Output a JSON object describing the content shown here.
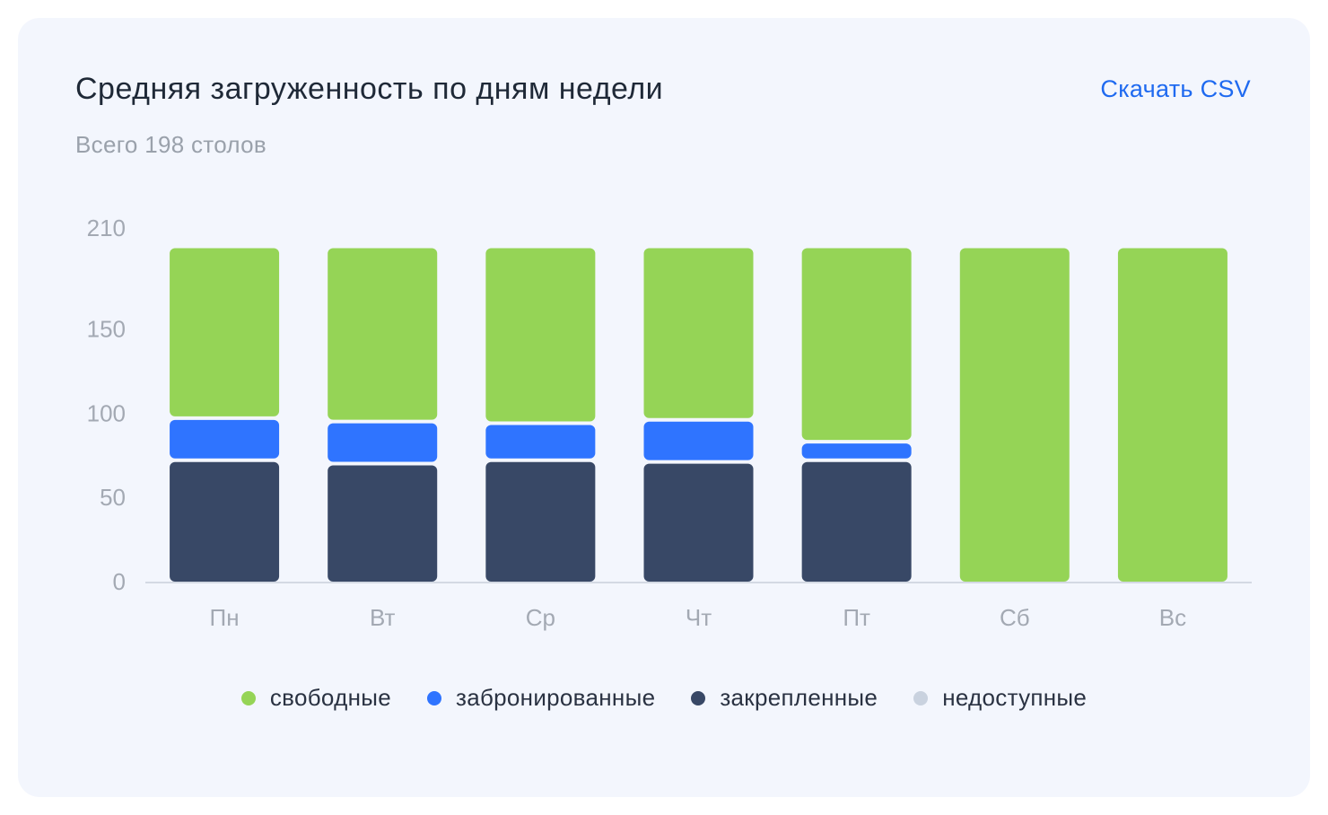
{
  "header": {
    "title": "Средняя загруженность по дням недели",
    "subtitle": "Всего 198 столов",
    "download_label": "Скачать CSV"
  },
  "colors": {
    "free": "#95d456",
    "booked": "#2f74ff",
    "fixed": "#384866",
    "unavailable": "#c9d2df",
    "axis": "#d3d9e3",
    "tick_text": "#a3a9b3"
  },
  "chart_data": {
    "type": "bar",
    "stacked": true,
    "title": "Средняя загруженность по дням недели",
    "subtitle": "Всего 198 столов",
    "categories": [
      "Пн",
      "Вт",
      "Ср",
      "Чт",
      "Пт",
      "Сб",
      "Вс"
    ],
    "yticks": [
      0,
      50,
      100,
      150,
      210
    ],
    "ylim": [
      0,
      210
    ],
    "grid": false,
    "legend_position": "bottom",
    "series": [
      {
        "name": "закрепленные",
        "color": "#384866",
        "values": [
          71,
          69,
          71,
          70,
          71,
          0,
          0
        ]
      },
      {
        "name": "забронированные",
        "color": "#2f74ff",
        "values": [
          25,
          25,
          22,
          25,
          11,
          0,
          0
        ]
      },
      {
        "name": "свободные",
        "color": "#95d456",
        "values": [
          102,
          104,
          105,
          103,
          116,
          198,
          198
        ]
      },
      {
        "name": "недоступные",
        "color": "#c9d2df",
        "values": [
          0,
          0,
          0,
          0,
          0,
          0,
          0
        ]
      }
    ]
  },
  "legend": [
    {
      "label": "свободные",
      "color": "#95d456"
    },
    {
      "label": "забронированные",
      "color": "#2f74ff"
    },
    {
      "label": "закрепленные",
      "color": "#384866"
    },
    {
      "label": "недоступные",
      "color": "#c9d2df"
    }
  ]
}
